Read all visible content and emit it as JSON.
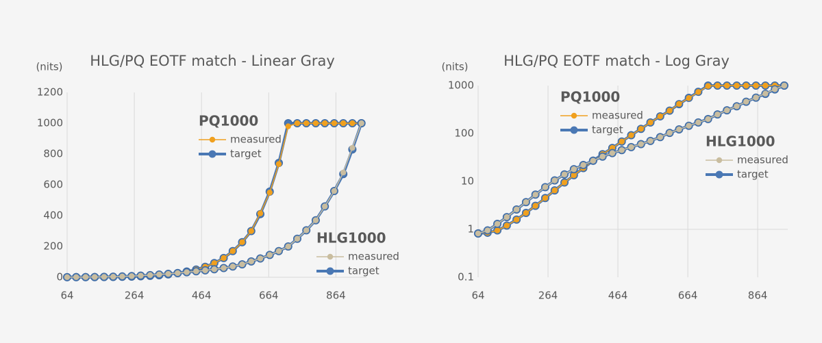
{
  "chart_data": [
    {
      "type": "line",
      "title": "HLG/PQ EOTF match - Linear Gray",
      "y_label": "(nits)",
      "x": [
        64,
        91,
        119,
        146,
        174,
        201,
        228,
        256,
        283,
        311,
        338,
        365,
        393,
        420,
        448,
        475,
        502,
        530,
        557,
        585,
        612,
        639,
        667,
        694,
        722,
        749,
        776,
        804,
        831,
        859,
        886,
        913,
        940
      ],
      "xlim": [
        64,
        955
      ],
      "xticks": [
        64,
        264,
        464,
        664,
        864
      ],
      "ylim": [
        0,
        1200
      ],
      "yticks": [
        0,
        200,
        400,
        600,
        800,
        1000,
        1200
      ],
      "yscale": "linear",
      "grid": "x",
      "x_axis_crossing": 0,
      "groups": [
        {
          "name": "PQ1000",
          "series": [
            {
              "name": "measured",
              "color": "#f0a01e",
              "values": [
                0.82,
                0.85,
                0.95,
                1.2,
                1.6,
                2.2,
                3.1,
                4.5,
                6.5,
                9.5,
                13.5,
                19,
                27,
                37,
                50,
                68,
                92,
                125,
                170,
                228,
                300,
                415,
                550,
                735,
                980,
                1000,
                1000,
                1000,
                1000,
                1000,
                1000,
                1000,
                1000
              ]
            },
            {
              "name": "target",
              "color": "#4a78b4",
              "values": [
                0.82,
                0.85,
                0.95,
                1.2,
                1.6,
                2.2,
                3.1,
                4.5,
                6.5,
                9.5,
                13.5,
                19,
                27,
                37,
                50,
                68,
                92,
                125,
                170,
                228,
                300,
                410,
                556,
                742,
                1000,
                1000,
                1000,
                1000,
                1000,
                1000,
                1000,
                1000,
                1000
              ]
            }
          ]
        },
        {
          "name": "HLG1000",
          "series": [
            {
              "name": "measured",
              "color": "#c9bd9f",
              "values": [
                0.82,
                0.95,
                1.3,
                1.8,
                2.6,
                3.7,
                5.3,
                7.6,
                10.5,
                14,
                18,
                22,
                27,
                33,
                39,
                45,
                52,
                60,
                70,
                84,
                103,
                122,
                145,
                170,
                200,
                250,
                305,
                370,
                460,
                560,
                680,
                840,
                1000
              ]
            },
            {
              "name": "target",
              "color": "#4a78b4",
              "values": [
                0.82,
                0.95,
                1.3,
                1.8,
                2.6,
                3.7,
                5.3,
                7.6,
                10.5,
                14,
                18,
                22,
                27,
                33,
                39,
                45,
                52,
                60,
                70,
                84,
                103,
                122,
                145,
                170,
                200,
                250,
                305,
                370,
                460,
                560,
                670,
                830,
                1000
              ]
            }
          ]
        }
      ]
    },
    {
      "type": "line",
      "title": "HLG/PQ EOTF match - Log Gray",
      "y_label": "(nits)",
      "x": [
        64,
        91,
        119,
        146,
        174,
        201,
        228,
        256,
        283,
        311,
        338,
        365,
        393,
        420,
        448,
        475,
        502,
        530,
        557,
        585,
        612,
        639,
        667,
        694,
        722,
        749,
        776,
        804,
        831,
        859,
        886,
        913,
        940
      ],
      "xlim": [
        64,
        950
      ],
      "xticks": [
        64,
        264,
        464,
        664,
        864
      ],
      "ylim": [
        0.1,
        1000
      ],
      "yticks": [
        0.1,
        1,
        10,
        100,
        1000
      ],
      "yscale": "log",
      "grid": "x",
      "x_axis_crossing": 1,
      "groups": [
        {
          "name": "PQ1000",
          "series": [
            {
              "name": "measured",
              "color": "#f0a01e",
              "values": [
                0.82,
                0.85,
                0.95,
                1.2,
                1.6,
                2.2,
                3.1,
                4.5,
                6.5,
                9.5,
                13.5,
                19,
                27,
                37,
                50,
                68,
                92,
                125,
                170,
                228,
                300,
                415,
                550,
                735,
                980,
                1000,
                1000,
                1000,
                1000,
                1000,
                1000,
                1000,
                1000
              ]
            },
            {
              "name": "target",
              "color": "#4a78b4",
              "values": [
                0.82,
                0.85,
                0.95,
                1.2,
                1.6,
                2.2,
                3.1,
                4.5,
                6.5,
                9.5,
                13.5,
                19,
                27,
                37,
                50,
                68,
                92,
                125,
                170,
                228,
                300,
                410,
                556,
                742,
                1000,
                1000,
                1000,
                1000,
                1000,
                1000,
                1000,
                1000,
                1000
              ]
            }
          ]
        },
        {
          "name": "HLG1000",
          "series": [
            {
              "name": "measured",
              "color": "#c9bd9f",
              "values": [
                0.82,
                0.95,
                1.3,
                1.8,
                2.6,
                3.7,
                5.3,
                7.6,
                10.5,
                14,
                18,
                22,
                27,
                33,
                39,
                45,
                52,
                60,
                70,
                84,
                103,
                122,
                145,
                170,
                200,
                250,
                305,
                370,
                460,
                560,
                680,
                840,
                1000
              ]
            },
            {
              "name": "target",
              "color": "#4a78b4",
              "values": [
                0.82,
                0.95,
                1.3,
                1.8,
                2.6,
                3.7,
                5.3,
                7.6,
                10.5,
                14,
                18,
                22,
                27,
                33,
                39,
                45,
                52,
                60,
                70,
                84,
                103,
                122,
                145,
                170,
                200,
                250,
                305,
                370,
                460,
                560,
                670,
                830,
                1000
              ]
            }
          ]
        }
      ]
    }
  ]
}
